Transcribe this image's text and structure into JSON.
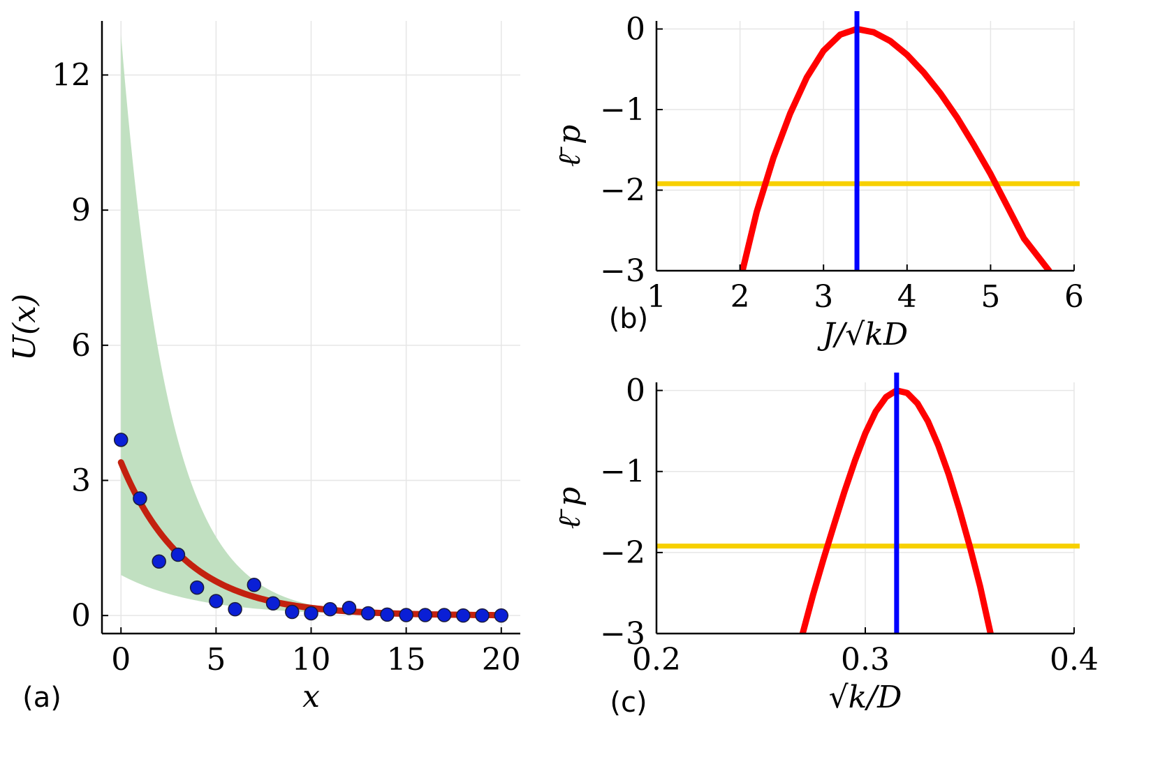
{
  "chart_data": [
    {
      "panel_label": "(a)",
      "type": "scatter",
      "xlabel": "x",
      "ylabel": "U(x)",
      "xlim": [
        -1,
        21
      ],
      "ylim": [
        -0.4,
        13.2
      ],
      "xticks": [
        "0",
        "5",
        "10",
        "15",
        "20"
      ],
      "yticks": [
        "0",
        "3",
        "6",
        "9",
        "12"
      ],
      "grid": true,
      "series": [
        {
          "name": "data",
          "kind": "points",
          "color": "#0a1fd6",
          "x": [
            0,
            1,
            2,
            3,
            4,
            5,
            6,
            7,
            8,
            9,
            10,
            11,
            12,
            13,
            14,
            15,
            16,
            17,
            18,
            19,
            20
          ],
          "y": [
            3.9,
            2.6,
            1.2,
            1.35,
            0.62,
            0.32,
            0.14,
            0.68,
            0.27,
            0.08,
            0.05,
            0.14,
            0.17,
            0.05,
            0.02,
            0.01,
            0.01,
            0.01,
            0.0,
            0.0,
            0.0
          ]
        },
        {
          "name": "fit",
          "kind": "curve",
          "color": "#c3210f",
          "model": "3.4*exp(-0.3*x)",
          "amplitude": 3.4,
          "rate": 0.3,
          "x_range": [
            0,
            20
          ]
        },
        {
          "name": "band",
          "kind": "band",
          "color": "#c1e0c1",
          "upper_amplitude": 12.9,
          "upper_rate": 0.4,
          "lower_amplitude": 0.9,
          "lower_rate": 0.25,
          "x_range": [
            0,
            20
          ]
        }
      ]
    },
    {
      "panel_label": "(b)",
      "type": "line",
      "xlabel": "J/√kD",
      "ylabel": "ℓ̄ p",
      "xlim": [
        1,
        6
      ],
      "ylim": [
        -3,
        0.1
      ],
      "xticks": [
        "1",
        "2",
        "3",
        "4",
        "5",
        "6"
      ],
      "yticks": [
        "0",
        "−1",
        "−2",
        "−3"
      ],
      "grid": true,
      "series": [
        {
          "name": "profile",
          "kind": "curve",
          "color": "#ff0000",
          "x": [
            2.03,
            2.2,
            2.4,
            2.6,
            2.8,
            3.0,
            3.2,
            3.4,
            3.6,
            3.8,
            4.0,
            4.2,
            4.4,
            4.6,
            4.8,
            5.0,
            5.2,
            5.4,
            5.7
          ],
          "y": [
            -3.0,
            -2.27,
            -1.6,
            -1.05,
            -0.6,
            -0.27,
            -0.07,
            0.0,
            -0.04,
            -0.15,
            -0.32,
            -0.54,
            -0.8,
            -1.1,
            -1.44,
            -1.8,
            -2.2,
            -2.6,
            -3.0
          ]
        },
        {
          "name": "maximum",
          "kind": "vline",
          "color": "#0000ff",
          "x": 3.4
        },
        {
          "name": "threshold",
          "kind": "hline",
          "color": "#f7d000",
          "y": -1.92
        }
      ]
    },
    {
      "panel_label": "(c)",
      "type": "line",
      "xlabel": "√k/D",
      "ylabel": "ℓ̄ p",
      "xlim": [
        0.2,
        0.4
      ],
      "ylim": [
        -3,
        0.1
      ],
      "xticks": [
        "0.2",
        "0.3",
        "0.4"
      ],
      "yticks": [
        "0",
        "−1",
        "−2",
        "−3"
      ],
      "grid": true,
      "series": [
        {
          "name": "profile",
          "kind": "curve",
          "color": "#ff0000",
          "x": [
            0.27,
            0.275,
            0.28,
            0.285,
            0.29,
            0.295,
            0.3,
            0.305,
            0.31,
            0.315,
            0.32,
            0.325,
            0.33,
            0.335,
            0.34,
            0.345,
            0.35,
            0.355,
            0.36
          ],
          "y": [
            -3.0,
            -2.52,
            -2.08,
            -1.66,
            -1.25,
            -0.87,
            -0.53,
            -0.26,
            -0.08,
            0.0,
            -0.03,
            -0.16,
            -0.38,
            -0.68,
            -1.04,
            -1.46,
            -1.92,
            -2.42,
            -3.0
          ]
        },
        {
          "name": "maximum",
          "kind": "vline",
          "color": "#0000ff",
          "x": 0.315
        },
        {
          "name": "threshold",
          "kind": "hline",
          "color": "#f7d000",
          "y": -1.92
        }
      ]
    }
  ]
}
